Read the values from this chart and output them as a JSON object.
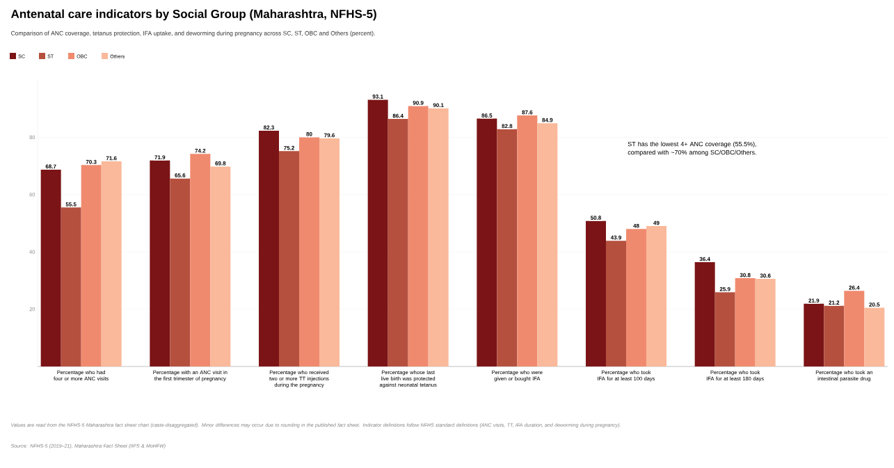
{
  "chart_data": {
    "type": "bar",
    "title": "Antenatal care indicators by Social Group (Maharashtra, NFHS-5)",
    "subtitle": "Comparison of ANC coverage, tetanus protection, IFA uptake, and deworming during pregnancy across SC, ST, OBC and Others (percent).",
    "categories": [
      "Percentage who had four or more ANC visits",
      "Percentage with an ANC visit in the first trimester of pregnancy",
      "Percentage who received two or more TT injections during the pregnancy",
      "Percentage whose last live birth was protected against neonatal tetanus",
      "Percentage who were given or bought IFA",
      "Percentage who took IFA for at least 100 days",
      "Percentage who took IFA for at least 180 days",
      "Percentage who took an intestinal parasite drug"
    ],
    "series": [
      {
        "name": "SC",
        "color": "#7b1416",
        "values": [
          68.7,
          71.9,
          82.3,
          93.1,
          86.5,
          50.8,
          36.4,
          21.9
        ]
      },
      {
        "name": "ST",
        "color": "#b5503f",
        "values": [
          55.5,
          65.6,
          75.2,
          86.4,
          82.8,
          43.9,
          25.9,
          21.2
        ]
      },
      {
        "name": "OBC",
        "color": "#f08a6e",
        "values": [
          70.3,
          74.2,
          80,
          90.9,
          87.6,
          48,
          30.8,
          26.4
        ]
      },
      {
        "name": "Others",
        "color": "#f9b99a",
        "values": [
          71.6,
          69.8,
          79.6,
          90.1,
          84.9,
          49,
          30.6,
          20.5
        ]
      }
    ],
    "ylim": [
      0,
      100
    ],
    "yticks": [
      20,
      40,
      60,
      80
    ],
    "grid": "y",
    "legend": "top left",
    "data_labels": true,
    "annotations": [
      "ST has the lowest 4+ ANC coverage (55.5%), compared with ~70% among SC/OBC/Others.",
      "Values are read from the NFHS-5 Maharashtra fact sheet chart (caste-disaggregated). Minor differences may occur due to rounding in the published fact sheet. Indicator definitions follow NFHS standard definitions (ANC visits, TT, IFA duration, and deworming during pregnancy).",
      "Source: NFHS-5 (2019–21), Maharashtra Fact Sheet (IIPS & MoHFW)"
    ]
  }
}
